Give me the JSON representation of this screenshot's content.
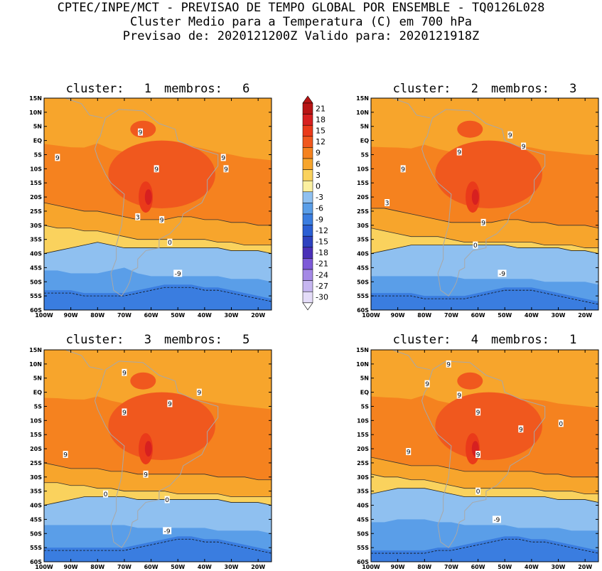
{
  "header": {
    "line1": "CPTEC/INPE/MCT - PREVISAO DE TEMPO GLOBAL POR ENSEMBLE - TQ0126L028",
    "line2": "Cluster Medio para a Temperatura (C) em 700 hPa",
    "line3": "Previsao de: 2020121200Z   Valido para: 2020121918Z"
  },
  "lat_ticks": [
    "15N",
    "10N",
    "5N",
    "EQ",
    "5S",
    "10S",
    "15S",
    "20S",
    "25S",
    "30S",
    "35S",
    "40S",
    "45S",
    "50S",
    "55S",
    "60S"
  ],
  "lon_ticks": [
    "100W",
    "90W",
    "80W",
    "70W",
    "60W",
    "50W",
    "40W",
    "30W",
    "20W"
  ],
  "colorbar": {
    "labels": [
      "21",
      "18",
      "15",
      "12",
      "9",
      "6",
      "3",
      "0",
      "-3",
      "-6",
      "-9",
      "-12",
      "-15",
      "-18",
      "-21",
      "-24",
      "-27",
      "-30"
    ],
    "colors": [
      "#b81515",
      "#d72020",
      "#ea3a1a",
      "#f0581e",
      "#f5821f",
      "#f7a52c",
      "#fad25d",
      "#fbf0a0",
      "#8fc0f0",
      "#5a9ee8",
      "#3a7de0",
      "#2b5fd4",
      "#2e42c0",
      "#4a30b8",
      "#7d5ad8",
      "#a589e6",
      "#c6b6f0",
      "#e4dcf8"
    ]
  },
  "panels": [
    {
      "cluster_label": "cluster:",
      "cluster": "1",
      "members_label": "membros:",
      "members": "6",
      "contour_labels": [
        "9",
        "9",
        "9",
        "9",
        "9",
        "9",
        "3",
        "0",
        "-9"
      ]
    },
    {
      "cluster_label": "cluster:",
      "cluster": "2",
      "members_label": "membros:",
      "members": "3",
      "contour_labels": [
        "9",
        "9",
        "9",
        "9",
        "9",
        "3",
        "0",
        "-9"
      ]
    },
    {
      "cluster_label": "cluster:",
      "cluster": "3",
      "members_label": "membros:",
      "members": "5",
      "contour_labels": [
        "9",
        "9",
        "9",
        "9",
        "9",
        "9",
        "0",
        "0",
        "-9"
      ]
    },
    {
      "cluster_label": "cluster:",
      "cluster": "4",
      "members_label": "membros:",
      "members": "1",
      "contour_labels": [
        "9",
        "9",
        "9",
        "9",
        "9",
        "9",
        "9",
        "0",
        "0",
        "-9"
      ]
    }
  ]
}
